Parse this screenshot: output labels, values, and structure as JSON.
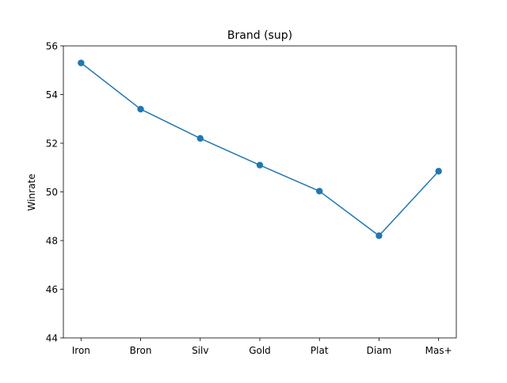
{
  "chart_data": {
    "type": "line",
    "title": "Brand (sup)",
    "xlabel": "",
    "ylabel": "Winrate",
    "categories": [
      "Iron",
      "Bron",
      "Silv",
      "Gold",
      "Plat",
      "Diam",
      "Mas+"
    ],
    "series": [
      {
        "values": [
          55.3,
          53.4,
          52.2,
          51.1,
          50.03,
          48.2,
          50.85
        ],
        "color": "#1f77b4",
        "marker": "circle"
      }
    ],
    "ylim": [
      44,
      56
    ],
    "yticks": [
      44,
      46,
      48,
      50,
      52,
      54,
      56
    ],
    "grid": false,
    "legend": "none"
  }
}
